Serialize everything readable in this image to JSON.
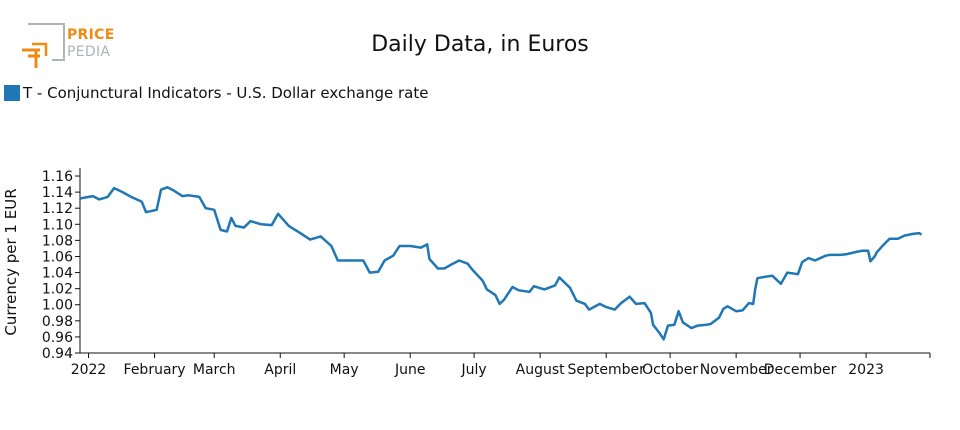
{
  "brand": {
    "line1": "PRICE",
    "line2": "PEDIA"
  },
  "colors": {
    "series": "#1f77b4",
    "logo_orange": "#ef8a12",
    "logo_gray": "#aeb3b8"
  },
  "chart_data": {
    "type": "line",
    "title": "Daily Data, in Euros",
    "xlabel": "",
    "ylabel": "Currency per 1 EUR",
    "ylim": [
      0.94,
      1.165
    ],
    "yticks": [
      0.94,
      0.96,
      0.98,
      1.0,
      1.02,
      1.04,
      1.06,
      1.08,
      1.1,
      1.12,
      1.14,
      1.16
    ],
    "ytick_labels": [
      "0.94",
      "0.96",
      "0.98",
      "1.00",
      "1.02",
      "1.04",
      "1.06",
      "1.08",
      "1.10",
      "1.12",
      "1.14",
      "1.16"
    ],
    "xlim": [
      "2021-12-28",
      "2023-01-31"
    ],
    "xticks": [
      {
        "date": "2022-01-01",
        "label": "2022"
      },
      {
        "date": "2022-02-01",
        "label": "February"
      },
      {
        "date": "2022-03-01",
        "label": "March"
      },
      {
        "date": "2022-04-01",
        "label": "April"
      },
      {
        "date": "2022-05-01",
        "label": "May"
      },
      {
        "date": "2022-06-01",
        "label": "June"
      },
      {
        "date": "2022-07-01",
        "label": "July"
      },
      {
        "date": "2022-08-01",
        "label": "August"
      },
      {
        "date": "2022-09-01",
        "label": "September"
      },
      {
        "date": "2022-10-01",
        "label": "October"
      },
      {
        "date": "2022-11-01",
        "label": "November"
      },
      {
        "date": "2022-12-01",
        "label": "December"
      },
      {
        "date": "2023-01-01",
        "label": "2023"
      }
    ],
    "legend": "top-left",
    "series": [
      {
        "name": "T - Conjunctural Indicators - U.S. Dollar exchange rate",
        "color": "#1f77b4",
        "points": [
          [
            "2021-12-28",
            1.132
          ],
          [
            "2022-01-03",
            1.135
          ],
          [
            "2022-01-06",
            1.131
          ],
          [
            "2022-01-10",
            1.134
          ],
          [
            "2022-01-13",
            1.145
          ],
          [
            "2022-01-17",
            1.14
          ],
          [
            "2022-01-21",
            1.134
          ],
          [
            "2022-01-26",
            1.128
          ],
          [
            "2022-01-28",
            1.115
          ],
          [
            "2022-02-02",
            1.118
          ],
          [
            "2022-02-04",
            1.143
          ],
          [
            "2022-02-07",
            1.146
          ],
          [
            "2022-02-10",
            1.142
          ],
          [
            "2022-02-14",
            1.135
          ],
          [
            "2022-02-17",
            1.136
          ],
          [
            "2022-02-22",
            1.134
          ],
          [
            "2022-02-25",
            1.12
          ],
          [
            "2022-03-01",
            1.118
          ],
          [
            "2022-03-04",
            1.093
          ],
          [
            "2022-03-07",
            1.091
          ],
          [
            "2022-03-09",
            1.108
          ],
          [
            "2022-03-11",
            1.098
          ],
          [
            "2022-03-15",
            1.096
          ],
          [
            "2022-03-18",
            1.104
          ],
          [
            "2022-03-23",
            1.1
          ],
          [
            "2022-03-28",
            1.099
          ],
          [
            "2022-03-31",
            1.113
          ],
          [
            "2022-04-05",
            1.098
          ],
          [
            "2022-04-11",
            1.088
          ],
          [
            "2022-04-15",
            1.081
          ],
          [
            "2022-04-20",
            1.085
          ],
          [
            "2022-04-25",
            1.073
          ],
          [
            "2022-04-28",
            1.055
          ],
          [
            "2022-05-02",
            1.055
          ],
          [
            "2022-05-06",
            1.055
          ],
          [
            "2022-05-10",
            1.055
          ],
          [
            "2022-05-13",
            1.04
          ],
          [
            "2022-05-17",
            1.041
          ],
          [
            "2022-05-20",
            1.055
          ],
          [
            "2022-05-24",
            1.061
          ],
          [
            "2022-05-27",
            1.073
          ],
          [
            "2022-06-01",
            1.073
          ],
          [
            "2022-06-06",
            1.071
          ],
          [
            "2022-06-09",
            1.075
          ],
          [
            "2022-06-10",
            1.057
          ],
          [
            "2022-06-14",
            1.045
          ],
          [
            "2022-06-17",
            1.045
          ],
          [
            "2022-06-21",
            1.051
          ],
          [
            "2022-06-24",
            1.055
          ],
          [
            "2022-06-28",
            1.051
          ],
          [
            "2022-06-30",
            1.044
          ],
          [
            "2022-07-05",
            1.03
          ],
          [
            "2022-07-07",
            1.019
          ],
          [
            "2022-07-11",
            1.012
          ],
          [
            "2022-07-13",
            1.001
          ],
          [
            "2022-07-15",
            1.006
          ],
          [
            "2022-07-19",
            1.022
          ],
          [
            "2022-07-22",
            1.018
          ],
          [
            "2022-07-27",
            1.016
          ],
          [
            "2022-07-29",
            1.023
          ],
          [
            "2022-08-03",
            1.019
          ],
          [
            "2022-08-08",
            1.024
          ],
          [
            "2022-08-10",
            1.034
          ],
          [
            "2022-08-15",
            1.021
          ],
          [
            "2022-08-18",
            1.005
          ],
          [
            "2022-08-22",
            1.001
          ],
          [
            "2022-08-24",
            0.994
          ],
          [
            "2022-08-29",
            1.001
          ],
          [
            "2022-09-01",
            0.997
          ],
          [
            "2022-09-05",
            0.994
          ],
          [
            "2022-09-08",
            1.002
          ],
          [
            "2022-09-12",
            1.01
          ],
          [
            "2022-09-15",
            1.001
          ],
          [
            "2022-09-19",
            1.002
          ],
          [
            "2022-09-22",
            0.99
          ],
          [
            "2022-09-23",
            0.975
          ],
          [
            "2022-09-26",
            0.965
          ],
          [
            "2022-09-28",
            0.957
          ],
          [
            "2022-09-30",
            0.974
          ],
          [
            "2022-10-03",
            0.975
          ],
          [
            "2022-10-05",
            0.992
          ],
          [
            "2022-10-07",
            0.978
          ],
          [
            "2022-10-11",
            0.971
          ],
          [
            "2022-10-14",
            0.974
          ],
          [
            "2022-10-18",
            0.975
          ],
          [
            "2022-10-20",
            0.976
          ],
          [
            "2022-10-24",
            0.984
          ],
          [
            "2022-10-26",
            0.995
          ],
          [
            "2022-10-28",
            0.998
          ],
          [
            "2022-11-01",
            0.992
          ],
          [
            "2022-11-04",
            0.993
          ],
          [
            "2022-11-07",
            1.002
          ],
          [
            "2022-11-09",
            1.001
          ],
          [
            "2022-11-10",
            1.02
          ],
          [
            "2022-11-11",
            1.033
          ],
          [
            "2022-11-15",
            1.035
          ],
          [
            "2022-11-18",
            1.036
          ],
          [
            "2022-11-22",
            1.026
          ],
          [
            "2022-11-25",
            1.04
          ],
          [
            "2022-11-30",
            1.038
          ],
          [
            "2022-12-02",
            1.053
          ],
          [
            "2022-12-05",
            1.058
          ],
          [
            "2022-12-08",
            1.055
          ],
          [
            "2022-12-13",
            1.061
          ],
          [
            "2022-12-15",
            1.062
          ],
          [
            "2022-12-20",
            1.062
          ],
          [
            "2022-12-23",
            1.063
          ],
          [
            "2022-12-28",
            1.066
          ],
          [
            "2022-12-30",
            1.067
          ],
          [
            "2023-01-02",
            1.067
          ],
          [
            "2023-01-03",
            1.054
          ],
          [
            "2023-01-05",
            1.06
          ],
          [
            "2023-01-06",
            1.065
          ],
          [
            "2023-01-09",
            1.074
          ],
          [
            "2023-01-12",
            1.082
          ],
          [
            "2023-01-16",
            1.082
          ],
          [
            "2023-01-19",
            1.086
          ],
          [
            "2023-01-23",
            1.088
          ],
          [
            "2023-01-26",
            1.089
          ],
          [
            "2023-01-27",
            1.087
          ]
        ]
      }
    ]
  }
}
